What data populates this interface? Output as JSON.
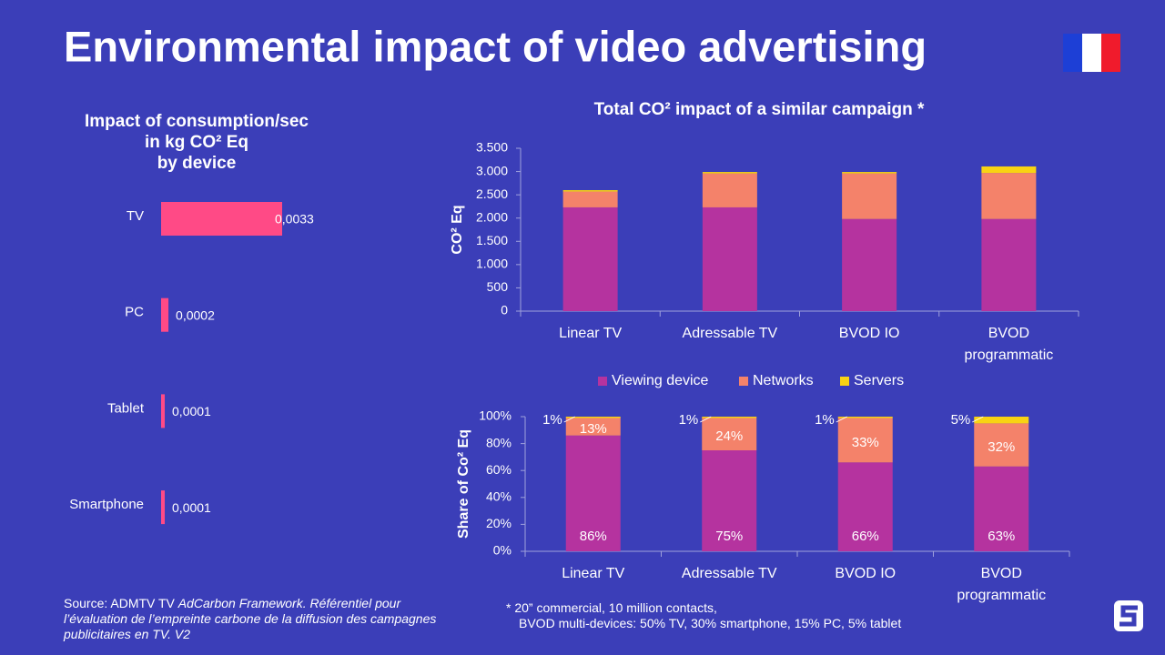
{
  "title": "Environmental impact of video advertising",
  "chart_data": [
    {
      "type": "hbar",
      "title": [
        "Impact of consumption/sec",
        "in kg CO² Eq",
        "by device"
      ],
      "categories": [
        "TV",
        "PC",
        "Tablet",
        "Smartphone"
      ],
      "values": [
        0.0033,
        0.0002,
        0.0001,
        0.0001
      ],
      "value_labels": [
        "0,0033",
        "0,0002",
        "0,0001",
        "0,0001"
      ],
      "color": "#ff4a86"
    },
    {
      "type": "stacked_bar",
      "title": "Total CO² impact of a similar campaign *",
      "ylabel": "CO² Eq",
      "categories": [
        "Linear TV",
        "Adressable TV",
        "BVOD IO",
        "BVOD programmatic"
      ],
      "series": [
        {
          "name": "Viewing device",
          "color": "#b5339f",
          "values": [
            2230,
            2230,
            1980,
            1980
          ]
        },
        {
          "name": "Networks",
          "color": "#f4826a",
          "values": [
            340,
            730,
            980,
            990
          ]
        },
        {
          "name": "Servers",
          "color": "#f8d313",
          "values": [
            30,
            30,
            30,
            140
          ]
        }
      ],
      "ylim": [
        0,
        3500
      ],
      "yticks": [
        0,
        500,
        {
          "value": 1000,
          "label": "1.000"
        },
        {
          "value": 1500,
          "label": "1.500"
        },
        {
          "value": 2000,
          "label": "2.000"
        },
        {
          "value": 2500,
          "label": "2.500"
        },
        {
          "value": 3000,
          "label": "3.000"
        },
        {
          "value": 3500,
          "label": "3.500"
        }
      ],
      "legend": "bottom"
    },
    {
      "type": "stacked_bar",
      "ylabel": "Share of Co² Eq",
      "categories": [
        "Linear TV",
        "Adressable TV",
        "BVOD IO",
        "BVOD programmatic"
      ],
      "series": [
        {
          "name": "Viewing device",
          "color": "#b5339f",
          "values": [
            86,
            75,
            66,
            63
          ],
          "value_labels": [
            "86%",
            "75%",
            "66%",
            "63%"
          ]
        },
        {
          "name": "Networks",
          "color": "#f4826a",
          "values": [
            13,
            24,
            33,
            32
          ],
          "value_labels": [
            "13%",
            "24%",
            "33%",
            "32%"
          ]
        },
        {
          "name": "Servers",
          "color": "#f8d313",
          "values": [
            1,
            1,
            1,
            5
          ],
          "value_labels": [
            "1%",
            "1%",
            "1%",
            "5%"
          ]
        }
      ],
      "ylim": [
        0,
        100
      ],
      "yticks": [
        {
          "value": 0,
          "label": "0%"
        },
        {
          "value": 20,
          "label": "20%"
        },
        {
          "value": 40,
          "label": "40%"
        },
        {
          "value": 60,
          "label": "60%"
        },
        {
          "value": 80,
          "label": "80%"
        },
        {
          "value": 100,
          "label": "100%"
        }
      ]
    }
  ],
  "source": [
    "Source: ADMTV TV ",
    "AdCarbon Framework. Référentiel pour l’évaluation de l’empreinte carbone de la diffusion des campagnes publicitaires en TV. V2"
  ],
  "footnote": [
    "* 20” commercial, 10 million contacts,",
    "BVOD multi-devices: 50% TV, 30% smartphone, 15% PC, 5% tablet"
  ]
}
